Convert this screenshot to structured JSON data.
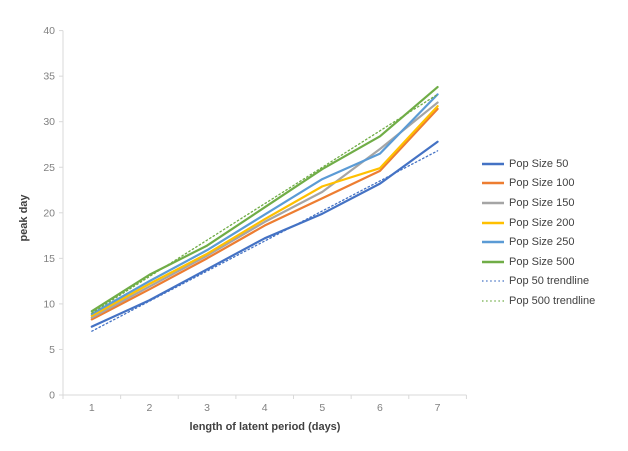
{
  "chart_data": {
    "type": "line",
    "title": "",
    "xlabel": "length of latent period (days)",
    "ylabel": "peak day",
    "x": [
      1,
      2,
      3,
      4,
      5,
      6,
      7
    ],
    "x_tick_labels": [
      "1",
      "2",
      "3",
      "4",
      "5",
      "6",
      "7"
    ],
    "y_tick_labels": [
      "0",
      "5",
      "10",
      "15",
      "20",
      "25",
      "30",
      "35",
      "40"
    ],
    "ylim": [
      0,
      40
    ],
    "y_tick_step": 5,
    "grid": false,
    "legend_position": "right",
    "axis_color": "#d9d9d9",
    "tick_label_color": "#808080",
    "background_color": "#ffffff",
    "series": [
      {
        "name": "Pop Size 50",
        "color": "#4472C4",
        "style": "solid",
        "values": [
          7.5,
          10.4,
          13.8,
          17.2,
          19.9,
          23.2,
          27.8
        ]
      },
      {
        "name": "Pop Size 100",
        "color": "#ED7D31",
        "style": "solid",
        "values": [
          8.3,
          11.6,
          15.0,
          18.6,
          21.6,
          24.6,
          31.4
        ]
      },
      {
        "name": "Pop Size 150",
        "color": "#A5A5A5",
        "style": "solid",
        "values": [
          8.5,
          11.9,
          15.3,
          19.0,
          22.3,
          27.0,
          32.1
        ]
      },
      {
        "name": "Pop Size 200",
        "color": "#FFC000",
        "style": "solid",
        "values": [
          8.7,
          12.2,
          15.5,
          19.3,
          22.9,
          24.9,
          31.7
        ]
      },
      {
        "name": "Pop Size 250",
        "color": "#5B9BD5",
        "style": "solid",
        "values": [
          8.9,
          12.5,
          15.9,
          19.8,
          23.7,
          26.5,
          33.0
        ]
      },
      {
        "name": "Pop Size 500",
        "color": "#70AD47",
        "style": "solid",
        "values": [
          9.2,
          13.2,
          16.4,
          20.6,
          24.8,
          28.4,
          33.8
        ]
      },
      {
        "name": "Pop 50 trendline",
        "color": "#4472C4",
        "style": "dotted",
        "values": [
          7.0,
          10.3,
          13.6,
          16.9,
          20.2,
          23.5,
          26.8
        ]
      },
      {
        "name": "Pop 500 trendline",
        "color": "#70AD47",
        "style": "dotted",
        "values": [
          9.0,
          13.0,
          17.0,
          21.0,
          25.0,
          29.0,
          33.0
        ]
      }
    ]
  }
}
